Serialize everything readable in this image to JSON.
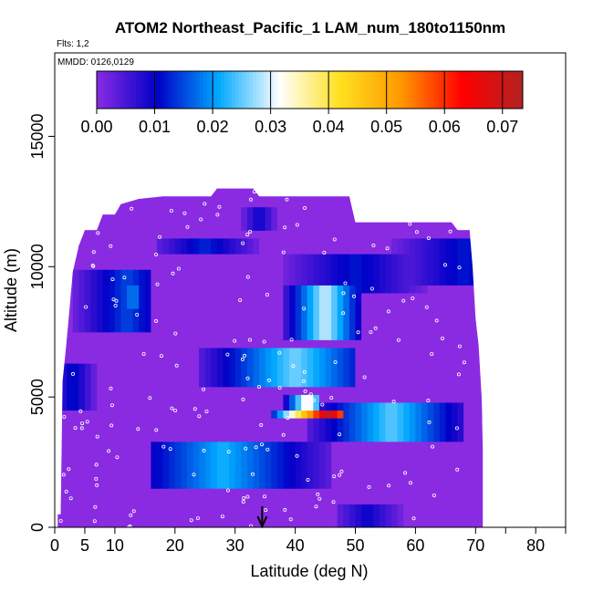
{
  "chart_data": {
    "type": "heatmap",
    "title": "ATOM2 Northeast_Pacific_1 LAM_num_180to1150nm",
    "flights_label": "Flts: 1,2",
    "dates_label": "MMDD: 0126,0129",
    "xlabel": "Latitude (deg N)",
    "ylabel": "Altitude (m)",
    "xlim": [
      0,
      85
    ],
    "ylim": [
      0,
      17500
    ],
    "x_ticks": [
      0,
      5,
      10,
      20,
      30,
      40,
      50,
      60,
      70,
      80
    ],
    "x_minor_ticks": [
      75
    ],
    "y_ticks": [
      0,
      5000,
      10000,
      15000
    ],
    "colorbar": {
      "range": [
        0,
        0.0735
      ],
      "ticks": [
        0.0,
        0.01,
        0.02,
        0.03,
        0.04,
        0.05,
        0.06,
        0.07
      ],
      "tick_labels": [
        "0.00",
        "0.01",
        "0.02",
        "0.03",
        "0.04",
        "0.05",
        "0.06",
        "0.07"
      ],
      "colors": [
        "#8a2be2",
        "#0000c8",
        "#00a8ff",
        "#ffffff",
        "#ffe020",
        "#ff9800",
        "#ff0000",
        "#b22222"
      ]
    },
    "marker_latitude": 34.5,
    "background_value": 0.0,
    "envelope": [
      [
        0.5,
        0,
        500
      ],
      [
        1.0,
        0,
        500
      ],
      [
        1.3,
        0,
        5600
      ],
      [
        2,
        0,
        7200
      ],
      [
        3,
        0,
        9800
      ],
      [
        4,
        0,
        10800
      ],
      [
        5,
        0,
        11400
      ],
      [
        7,
        0,
        11400
      ],
      [
        8,
        0,
        12000
      ],
      [
        10,
        0,
        12000
      ],
      [
        11,
        0,
        12400
      ],
      [
        14,
        0,
        12600
      ],
      [
        18,
        0,
        12700
      ],
      [
        26,
        0,
        12700
      ],
      [
        27,
        0,
        13000
      ],
      [
        33,
        0,
        13000
      ],
      [
        34,
        0,
        12700
      ],
      [
        49,
        0,
        12700
      ],
      [
        50,
        0,
        11700
      ],
      [
        66,
        0,
        11700
      ],
      [
        67,
        0,
        11400
      ],
      [
        69,
        0,
        11400
      ],
      [
        69.5,
        0,
        10000
      ],
      [
        70,
        0,
        8000
      ],
      [
        70.5,
        0,
        7000
      ],
      [
        71,
        0,
        5000
      ],
      [
        71.2,
        0,
        3000
      ],
      [
        71.2,
        0,
        0
      ]
    ],
    "features": [
      {
        "lat": [
          36,
          48
        ],
        "alt": [
          4100,
          4600
        ],
        "peak": 0.072,
        "center": 45.5
      },
      {
        "lat": [
          38,
          44
        ],
        "alt": [
          4600,
          5100
        ],
        "peak": 0.035,
        "center": 42
      },
      {
        "lat": [
          42,
          68
        ],
        "alt": [
          3400,
          4700
        ],
        "peak": 0.025,
        "center": 56
      },
      {
        "lat": [
          16,
          46
        ],
        "alt": [
          1600,
          3200
        ],
        "peak": 0.022,
        "center": 28
      },
      {
        "lat": [
          24,
          50
        ],
        "alt": [
          5400,
          7000
        ],
        "peak": 0.026,
        "center": 40
      },
      {
        "lat": [
          38,
          51
        ],
        "alt": [
          7200,
          9200
        ],
        "peak": 0.03,
        "center": 45
      },
      {
        "lat": [
          3,
          16
        ],
        "alt": [
          7500,
          9800
        ],
        "peak": 0.015,
        "center": 12
      },
      {
        "lat": [
          10,
          16
        ],
        "alt": [
          8400,
          9200
        ],
        "peak": 0.02,
        "center": 13
      },
      {
        "lat": [
          38,
          62
        ],
        "alt": [
          9100,
          10400
        ],
        "peak": 0.012,
        "center": 50
      },
      {
        "lat": [
          17,
          34
        ],
        "alt": [
          10400,
          11200
        ],
        "peak": 0.013,
        "center": 25
      },
      {
        "lat": [
          56,
          70
        ],
        "alt": [
          9300,
          11000
        ],
        "peak": 0.012,
        "center": 68
      },
      {
        "lat": [
          1,
          7
        ],
        "alt": [
          4600,
          6400
        ],
        "peak": 0.012,
        "center": 3
      },
      {
        "lat": [
          47,
          58
        ],
        "alt": [
          0,
          900
        ],
        "peak": 0.01,
        "center": 52
      },
      {
        "lat": [
          31,
          37
        ],
        "alt": [
          11300,
          12400
        ],
        "peak": 0.01,
        "center": 34
      }
    ]
  }
}
